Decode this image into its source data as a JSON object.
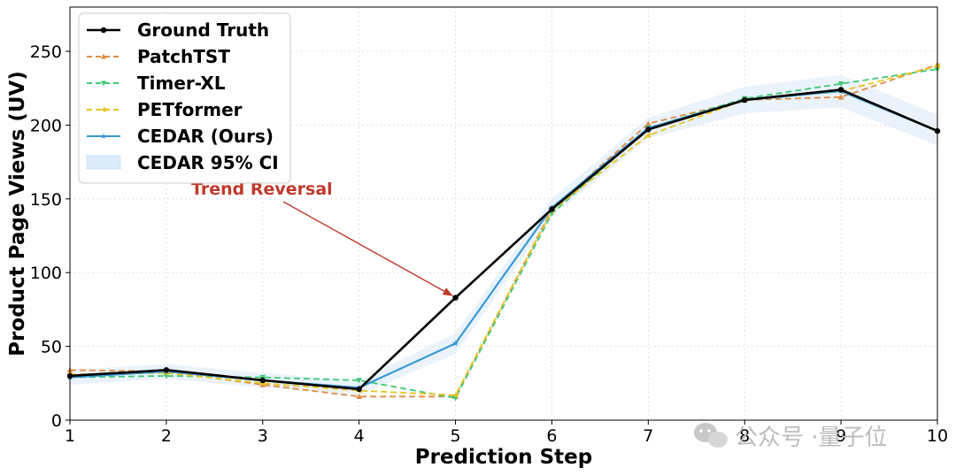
{
  "chart_data": {
    "type": "line",
    "xlabel": "Prediction Step",
    "ylabel": "Product Page Views (UV)",
    "xlim": [
      1,
      10
    ],
    "ylim": [
      0,
      280
    ],
    "xticks": [
      1,
      2,
      3,
      4,
      5,
      6,
      7,
      8,
      9,
      10
    ],
    "yticks": [
      0,
      50,
      100,
      150,
      200,
      250
    ],
    "x": [
      1,
      2,
      3,
      4,
      5,
      6,
      7,
      8,
      9,
      10
    ],
    "grid": true,
    "legend_position": "top-left",
    "series": [
      {
        "name": "Ground Truth",
        "color": "#000000",
        "style": "solid",
        "marker": "circle",
        "values": [
          30,
          34,
          27,
          21,
          83,
          143,
          197,
          217,
          224,
          196
        ]
      },
      {
        "name": "PatchTST",
        "color": "#e08c46",
        "style": "dashed",
        "marker": "triangle-up",
        "values": [
          34,
          33,
          24,
          16,
          16,
          143,
          201,
          217,
          219,
          241
        ]
      },
      {
        "name": "Timer-XL",
        "color": "#3fc977",
        "style": "dashed",
        "marker": "triangle-down",
        "values": [
          29,
          30,
          29,
          27,
          15,
          140,
          198,
          218,
          228,
          238
        ]
      },
      {
        "name": "PETformer",
        "color": "#e8c41f",
        "style": "dashed",
        "marker": "triangle-left",
        "values": [
          31,
          32,
          25,
          20,
          17,
          142,
          193,
          217,
          223,
          240
        ]
      },
      {
        "name": "CEDAR (Ours)",
        "color": "#3a98d4",
        "style": "solid",
        "marker": "star",
        "values": [
          29,
          33,
          27,
          22,
          52,
          144,
          198,
          217,
          223,
          196
        ]
      }
    ],
    "confidence_band": {
      "name": "CEDAR 95% CI",
      "color": "#dcebf8",
      "lower": [
        24,
        28,
        22,
        17,
        45,
        138,
        191,
        208,
        212,
        186
      ],
      "upper": [
        34,
        38,
        32,
        27,
        59,
        150,
        205,
        226,
        234,
        207
      ]
    },
    "annotation": {
      "text": "Trend Reversal",
      "color": "#c0392b",
      "points_to": {
        "x": 5,
        "y": 83
      }
    }
  },
  "watermark": {
    "text": "公众号 ·量子位"
  }
}
